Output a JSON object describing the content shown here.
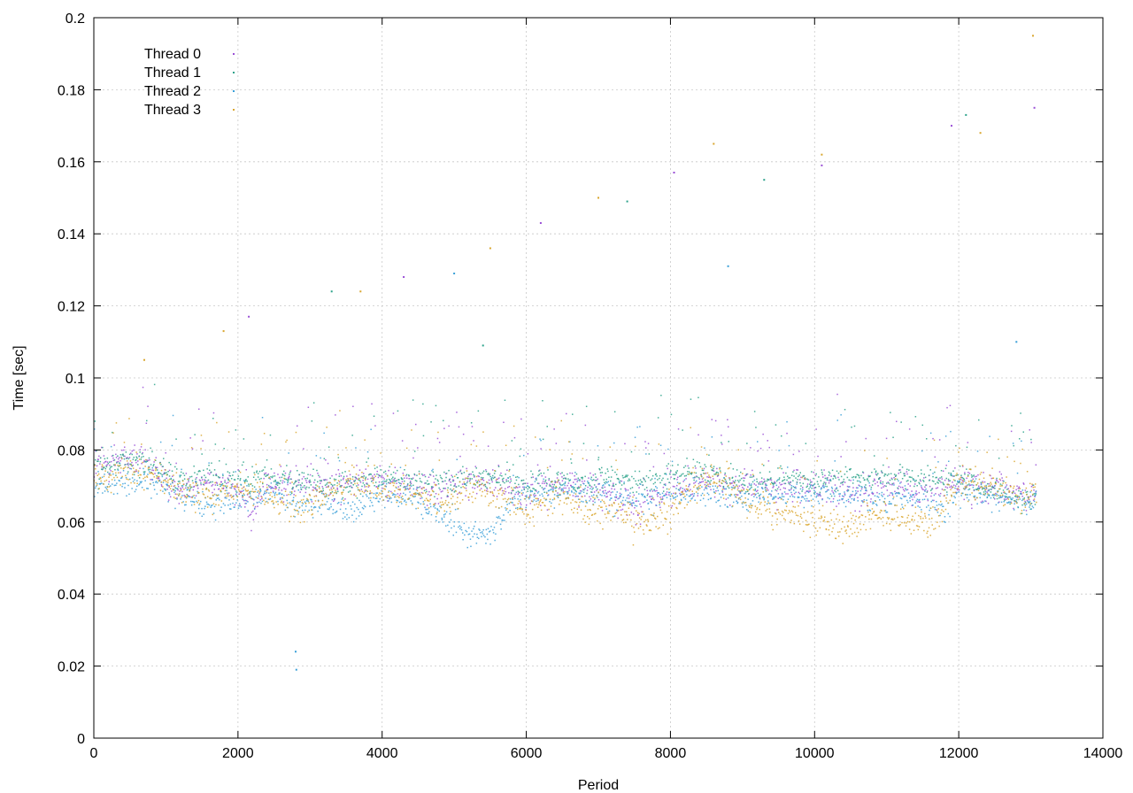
{
  "chart_data": {
    "type": "scatter",
    "title": "",
    "xlabel": "Period",
    "ylabel": "Time [sec]",
    "xlim": [
      0,
      14000
    ],
    "ylim": [
      0,
      0.2
    ],
    "x_ticks": [
      "0",
      "2000",
      "4000",
      "6000",
      "8000",
      "10000",
      "12000",
      "14000"
    ],
    "y_ticks": [
      "0",
      "0.02",
      "0.04",
      "0.06",
      "0.08",
      "0.1",
      "0.12",
      "0.14",
      "0.16",
      "0.18",
      "0.2"
    ],
    "grid": true,
    "legend_position": "top-left",
    "x_max_data": 13070,
    "series": [
      {
        "name": "Thread 0",
        "color": "#9a4fd6",
        "trend": [
          [
            0,
            0.075
          ],
          [
            400,
            0.078
          ],
          [
            800,
            0.075
          ],
          [
            1200,
            0.07
          ],
          [
            1600,
            0.072
          ],
          [
            2000,
            0.068
          ],
          [
            2200,
            0.064
          ],
          [
            2400,
            0.07
          ],
          [
            2800,
            0.071
          ],
          [
            3200,
            0.07
          ],
          [
            3600,
            0.071
          ],
          [
            4000,
            0.072
          ],
          [
            4400,
            0.07
          ],
          [
            4800,
            0.068
          ],
          [
            5200,
            0.072
          ],
          [
            5600,
            0.07
          ],
          [
            6000,
            0.068
          ],
          [
            6400,
            0.071
          ],
          [
            6800,
            0.07
          ],
          [
            7200,
            0.068
          ],
          [
            7600,
            0.064
          ],
          [
            8000,
            0.07
          ],
          [
            8400,
            0.072
          ],
          [
            8800,
            0.07
          ],
          [
            9200,
            0.07
          ],
          [
            9600,
            0.069
          ],
          [
            10000,
            0.07
          ],
          [
            10400,
            0.068
          ],
          [
            10800,
            0.069
          ],
          [
            11200,
            0.07
          ],
          [
            11600,
            0.068
          ],
          [
            12000,
            0.072
          ],
          [
            12400,
            0.069
          ],
          [
            12800,
            0.068
          ],
          [
            13070,
            0.069
          ]
        ],
        "spread": 0.006,
        "outliers": [
          [
            2150,
            0.117
          ],
          [
            4300,
            0.128
          ],
          [
            6200,
            0.143
          ],
          [
            8050,
            0.157
          ],
          [
            10100,
            0.159
          ],
          [
            11900,
            0.17
          ],
          [
            13050,
            0.175
          ]
        ]
      },
      {
        "name": "Thread 1",
        "color": "#2ba28a",
        "trend": [
          [
            0,
            0.074
          ],
          [
            400,
            0.077
          ],
          [
            800,
            0.076
          ],
          [
            1200,
            0.072
          ],
          [
            1600,
            0.073
          ],
          [
            2000,
            0.071
          ],
          [
            2400,
            0.073
          ],
          [
            2800,
            0.072
          ],
          [
            3200,
            0.071
          ],
          [
            3600,
            0.07
          ],
          [
            4000,
            0.072
          ],
          [
            4400,
            0.071
          ],
          [
            4800,
            0.071
          ],
          [
            5200,
            0.072
          ],
          [
            5600,
            0.073
          ],
          [
            6000,
            0.07
          ],
          [
            6400,
            0.072
          ],
          [
            6800,
            0.071
          ],
          [
            7200,
            0.072
          ],
          [
            7600,
            0.071
          ],
          [
            8000,
            0.073
          ],
          [
            8400,
            0.074
          ],
          [
            8800,
            0.072
          ],
          [
            9200,
            0.071
          ],
          [
            9600,
            0.072
          ],
          [
            10000,
            0.071
          ],
          [
            10400,
            0.072
          ],
          [
            10800,
            0.073
          ],
          [
            11200,
            0.072
          ],
          [
            11600,
            0.071
          ],
          [
            12000,
            0.073
          ],
          [
            12400,
            0.069
          ],
          [
            12800,
            0.067
          ],
          [
            13070,
            0.067
          ]
        ],
        "spread": 0.0045,
        "outliers": [
          [
            3300,
            0.124
          ],
          [
            5400,
            0.109
          ],
          [
            7400,
            0.149
          ],
          [
            9300,
            0.155
          ],
          [
            12100,
            0.173
          ]
        ]
      },
      {
        "name": "Thread 2",
        "color": "#3aa0d8",
        "trend": [
          [
            0,
            0.07
          ],
          [
            400,
            0.072
          ],
          [
            800,
            0.071
          ],
          [
            1200,
            0.068
          ],
          [
            1600,
            0.064
          ],
          [
            2000,
            0.066
          ],
          [
            2400,
            0.068
          ],
          [
            2800,
            0.065
          ],
          [
            3200,
            0.066
          ],
          [
            3600,
            0.063
          ],
          [
            4000,
            0.068
          ],
          [
            4400,
            0.067
          ],
          [
            4800,
            0.062
          ],
          [
            5200,
            0.057
          ],
          [
            5500,
            0.057
          ],
          [
            5800,
            0.066
          ],
          [
            6200,
            0.068
          ],
          [
            6600,
            0.069
          ],
          [
            7000,
            0.068
          ],
          [
            7400,
            0.066
          ],
          [
            7800,
            0.067
          ],
          [
            8200,
            0.068
          ],
          [
            8600,
            0.069
          ],
          [
            9000,
            0.066
          ],
          [
            9400,
            0.067
          ],
          [
            9800,
            0.068
          ],
          [
            10200,
            0.067
          ],
          [
            10600,
            0.068
          ],
          [
            11000,
            0.066
          ],
          [
            11400,
            0.067
          ],
          [
            11800,
            0.063
          ],
          [
            12000,
            0.069
          ],
          [
            12400,
            0.067
          ],
          [
            12800,
            0.066
          ],
          [
            13070,
            0.065
          ]
        ],
        "spread": 0.005,
        "outliers": [
          [
            2800,
            0.024
          ],
          [
            2810,
            0.019
          ],
          [
            5000,
            0.129
          ],
          [
            8800,
            0.131
          ],
          [
            12800,
            0.11
          ]
        ]
      },
      {
        "name": "Thread 3",
        "color": "#d9a62e",
        "trend": [
          [
            0,
            0.072
          ],
          [
            400,
            0.074
          ],
          [
            800,
            0.073
          ],
          [
            1200,
            0.068
          ],
          [
            1600,
            0.067
          ],
          [
            2000,
            0.069
          ],
          [
            2400,
            0.068
          ],
          [
            2800,
            0.063
          ],
          [
            3200,
            0.069
          ],
          [
            3600,
            0.071
          ],
          [
            4000,
            0.069
          ],
          [
            4400,
            0.068
          ],
          [
            4800,
            0.065
          ],
          [
            5200,
            0.069
          ],
          [
            5600,
            0.068
          ],
          [
            6000,
            0.063
          ],
          [
            6400,
            0.067
          ],
          [
            6800,
            0.063
          ],
          [
            7200,
            0.064
          ],
          [
            7600,
            0.06
          ],
          [
            8000,
            0.063
          ],
          [
            8400,
            0.072
          ],
          [
            8800,
            0.07
          ],
          [
            9200,
            0.064
          ],
          [
            9600,
            0.063
          ],
          [
            10000,
            0.06
          ],
          [
            10400,
            0.058
          ],
          [
            10800,
            0.063
          ],
          [
            11200,
            0.061
          ],
          [
            11600,
            0.06
          ],
          [
            12000,
            0.071
          ],
          [
            12400,
            0.07
          ],
          [
            12800,
            0.067
          ],
          [
            13070,
            0.068
          ]
        ],
        "spread": 0.0055,
        "outliers": [
          [
            700,
            0.105
          ],
          [
            1800,
            0.113
          ],
          [
            3700,
            0.124
          ],
          [
            5500,
            0.136
          ],
          [
            7000,
            0.15
          ],
          [
            8600,
            0.165
          ],
          [
            10100,
            0.162
          ],
          [
            12300,
            0.168
          ],
          [
            13030,
            0.195
          ]
        ]
      }
    ]
  }
}
